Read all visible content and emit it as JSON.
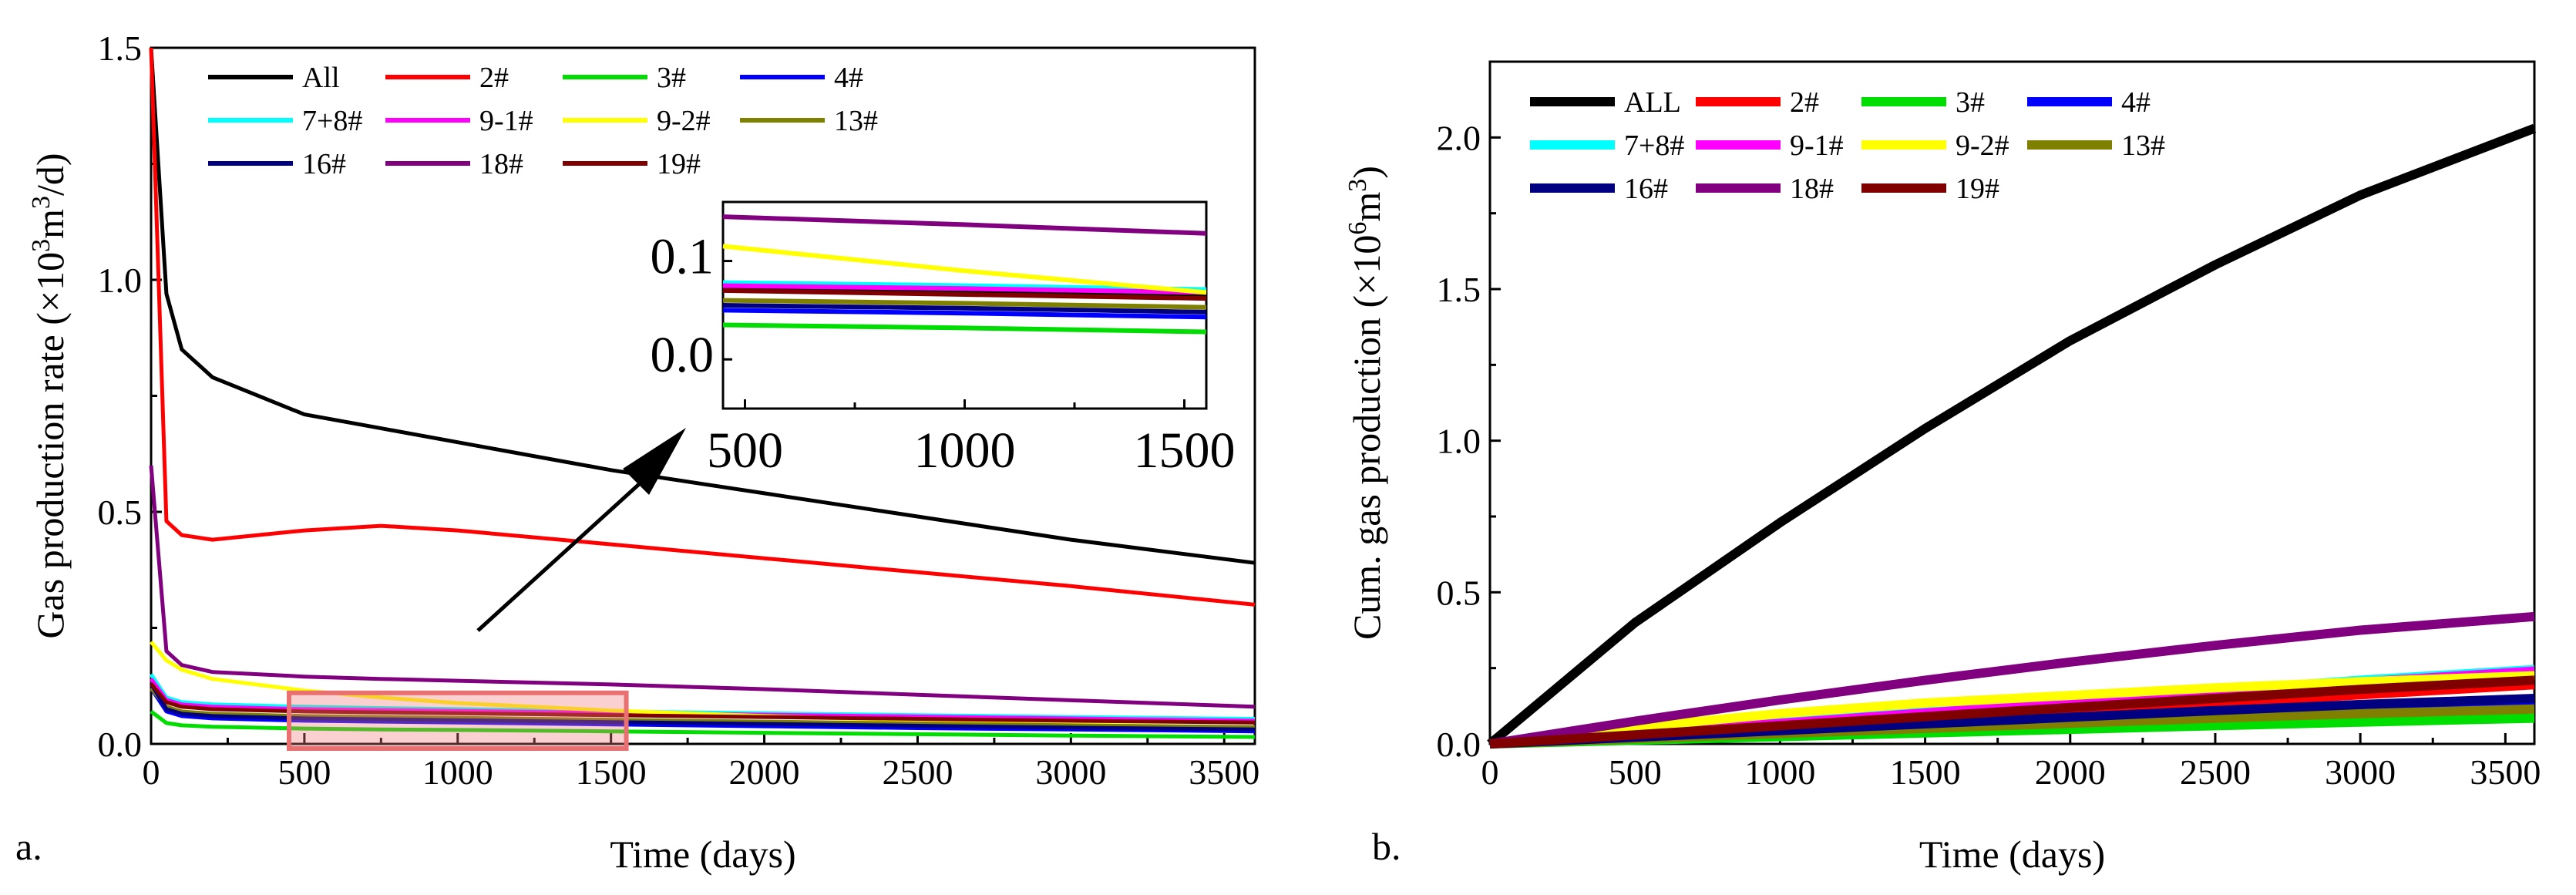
{
  "panels": [
    {
      "panel_label": "a.",
      "xlabel": "Time (days)",
      "ylabel_main": "Gas production rate (×10",
      "ylabel_sup": "3",
      "ylabel_mid": "m",
      "ylabel_sup2": "3",
      "ylabel_tail": "/d)",
      "legend_labels": [
        "All",
        "2#",
        "3#",
        "4#",
        "7+8#",
        "9-1#",
        "9-2#",
        "13#",
        "16#",
        "18#",
        "19#"
      ]
    },
    {
      "panel_label": "b.",
      "xlabel": "Time (days)",
      "ylabel_main": "Cum. gas production (×10",
      "ylabel_sup": "6",
      "ylabel_mid": "m",
      "ylabel_sup2": "3",
      "ylabel_tail": ")",
      "legend_labels": [
        "ALL",
        "2#",
        "3#",
        "4#",
        "7+8#",
        "9-1#",
        "9-2#",
        "13#",
        "16#",
        "18#",
        "19#"
      ]
    }
  ],
  "series_colors": {
    "All": "#000000",
    "2#": "#ff0000",
    "3#": "#00dd00",
    "4#": "#0000ff",
    "7+8#": "#00ffff",
    "9-1#": "#ff00ff",
    "9-2#": "#ffff00",
    "13#": "#808000",
    "16#": "#000080",
    "18#": "#800080",
    "19#": "#800000"
  },
  "chart_data": [
    {
      "type": "line",
      "xlabel": "Time (days)",
      "ylabel": "Gas production rate (×10³m³/d)",
      "xlim": [
        0,
        3600
      ],
      "ylim": [
        0,
        1.5
      ],
      "xticks": [
        0,
        500,
        1000,
        1500,
        2000,
        2500,
        3000,
        3500
      ],
      "yticks": [
        0.0,
        0.5,
        1.0,
        1.5
      ],
      "legend_location": "top-left",
      "x": [
        0,
        50,
        100,
        200,
        500,
        750,
        1000,
        1500,
        2000,
        2500,
        3000,
        3600
      ],
      "series": [
        {
          "name": "All",
          "values": [
            1.5,
            0.97,
            0.85,
            0.79,
            0.71,
            0.68,
            0.65,
            0.59,
            0.54,
            0.49,
            0.44,
            0.39
          ]
        },
        {
          "name": "2#",
          "values": [
            1.5,
            0.48,
            0.45,
            0.44,
            0.46,
            0.47,
            0.46,
            0.43,
            0.4,
            0.37,
            0.34,
            0.3
          ]
        },
        {
          "name": "3#",
          "values": [
            0.07,
            0.045,
            0.04,
            0.037,
            0.033,
            0.031,
            0.03,
            0.027,
            0.024,
            0.021,
            0.018,
            0.015
          ]
        },
        {
          "name": "4#",
          "values": [
            0.12,
            0.07,
            0.06,
            0.055,
            0.05,
            0.048,
            0.046,
            0.042,
            0.038,
            0.034,
            0.031,
            0.027
          ]
        },
        {
          "name": "7+8#",
          "values": [
            0.15,
            0.1,
            0.09,
            0.085,
            0.08,
            0.077,
            0.075,
            0.07,
            0.066,
            0.062,
            0.058,
            0.054
          ]
        },
        {
          "name": "9-1#",
          "values": [
            0.14,
            0.095,
            0.085,
            0.08,
            0.075,
            0.073,
            0.071,
            0.067,
            0.063,
            0.059,
            0.055,
            0.05
          ]
        },
        {
          "name": "9-2#",
          "values": [
            0.22,
            0.18,
            0.16,
            0.14,
            0.115,
            0.1,
            0.088,
            0.072,
            0.06,
            0.05,
            0.042,
            0.035
          ]
        },
        {
          "name": "13#",
          "values": [
            0.12,
            0.08,
            0.07,
            0.065,
            0.06,
            0.058,
            0.056,
            0.052,
            0.048,
            0.044,
            0.04,
            0.036
          ]
        },
        {
          "name": "16#",
          "values": [
            0.13,
            0.075,
            0.065,
            0.06,
            0.055,
            0.053,
            0.051,
            0.047,
            0.043,
            0.039,
            0.035,
            0.031
          ]
        },
        {
          "name": "18#",
          "values": [
            0.6,
            0.2,
            0.17,
            0.155,
            0.145,
            0.14,
            0.136,
            0.128,
            0.118,
            0.106,
            0.094,
            0.08
          ]
        },
        {
          "name": "19#",
          "values": [
            0.13,
            0.09,
            0.08,
            0.075,
            0.07,
            0.068,
            0.066,
            0.062,
            0.058,
            0.054,
            0.05,
            0.046
          ]
        }
      ],
      "inset": {
        "xlim": [
          450,
          1550
        ],
        "ylim": [
          -0.05,
          0.16
        ],
        "xticks": [
          500,
          1000,
          1500
        ],
        "yticks": [
          0.0,
          0.1
        ],
        "x": [
          450,
          1000,
          1550
        ],
        "series": [
          {
            "name": "All",
            "values": [
              0.072,
              0.068,
              0.064
            ]
          },
          {
            "name": "3#",
            "values": [
              0.035,
              0.032,
              0.028
            ]
          },
          {
            "name": "4#",
            "values": [
              0.05,
              0.047,
              0.043
            ]
          },
          {
            "name": "7+8#",
            "values": [
              0.078,
              0.075,
              0.071
            ]
          },
          {
            "name": "9-1#",
            "values": [
              0.075,
              0.072,
              0.068
            ]
          },
          {
            "name": "9-2#",
            "values": [
              0.115,
              0.09,
              0.068
            ]
          },
          {
            "name": "13#",
            "values": [
              0.06,
              0.057,
              0.053
            ]
          },
          {
            "name": "16#",
            "values": [
              0.055,
              0.052,
              0.048
            ]
          },
          {
            "name": "18#",
            "values": [
              0.145,
              0.137,
              0.128
            ]
          },
          {
            "name": "19#",
            "values": [
              0.07,
              0.066,
              0.062
            ]
          }
        ]
      }
    },
    {
      "type": "line",
      "xlabel": "Time (days)",
      "ylabel": "Cum. gas production (×10⁶m³)",
      "xlim": [
        0,
        3600
      ],
      "ylim": [
        0,
        2.25
      ],
      "xticks": [
        0,
        500,
        1000,
        1500,
        2000,
        2500,
        3000,
        3500
      ],
      "yticks": [
        0.0,
        0.5,
        1.0,
        1.5,
        2.0
      ],
      "legend_location": "top-left",
      "x": [
        0,
        500,
        1000,
        1500,
        2000,
        2500,
        3000,
        3600
      ],
      "series": [
        {
          "name": "ALL",
          "values": [
            0,
            0.4,
            0.73,
            1.04,
            1.33,
            1.58,
            1.81,
            2.03
          ]
        },
        {
          "name": "2#",
          "values": [
            0,
            0.024,
            0.05,
            0.078,
            0.106,
            0.134,
            0.162,
            0.195
          ]
        },
        {
          "name": "3#",
          "values": [
            0,
            0.012,
            0.024,
            0.036,
            0.048,
            0.06,
            0.072,
            0.085
          ]
        },
        {
          "name": "4#",
          "values": [
            0,
            0.02,
            0.04,
            0.06,
            0.08,
            0.1,
            0.12,
            0.14
          ]
        },
        {
          "name": "7+8#",
          "values": [
            0,
            0.035,
            0.07,
            0.105,
            0.14,
            0.175,
            0.21,
            0.245
          ]
        },
        {
          "name": "9-1#",
          "values": [
            0,
            0.034,
            0.068,
            0.102,
            0.136,
            0.17,
            0.204,
            0.24
          ]
        },
        {
          "name": "9-2#",
          "values": [
            0,
            0.055,
            0.1,
            0.135,
            0.16,
            0.185,
            0.205,
            0.225
          ]
        },
        {
          "name": "13#",
          "values": [
            0,
            0.017,
            0.034,
            0.051,
            0.068,
            0.085,
            0.1,
            0.115
          ]
        },
        {
          "name": "16#",
          "values": [
            0,
            0.022,
            0.044,
            0.066,
            0.088,
            0.11,
            0.13,
            0.15
          ]
        },
        {
          "name": "18#",
          "values": [
            0,
            0.075,
            0.145,
            0.21,
            0.27,
            0.325,
            0.375,
            0.42
          ]
        },
        {
          "name": "19#",
          "values": [
            0,
            0.03,
            0.06,
            0.09,
            0.12,
            0.15,
            0.18,
            0.21
          ]
        }
      ]
    }
  ]
}
